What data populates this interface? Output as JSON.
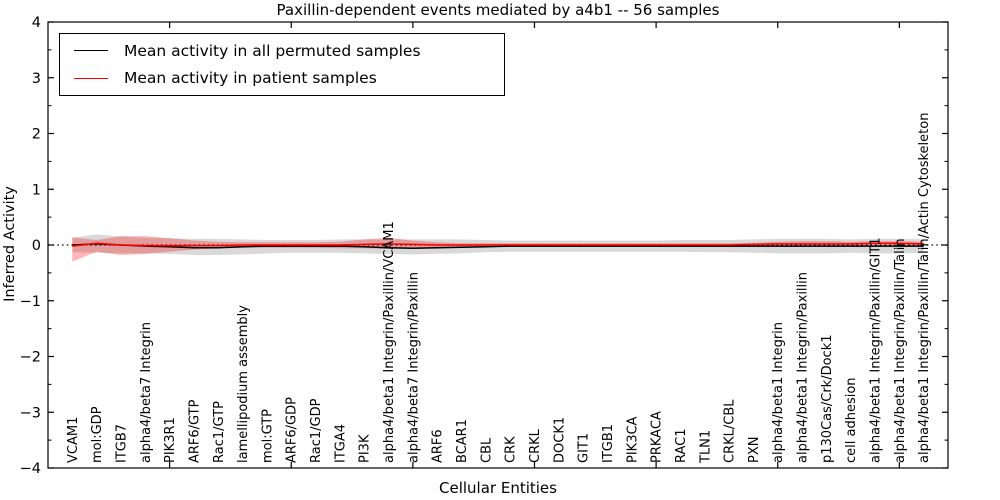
{
  "chart_data": {
    "type": "line",
    "title": "Paxillin-dependent events mediated by a4b1 -- 56 samples",
    "xlabel": "Cellular Entities",
    "ylabel": "Inferred Activity",
    "ylim": [
      -4,
      4
    ],
    "xlim": [
      0,
      37
    ],
    "yticks": [
      4,
      3,
      2,
      1,
      0,
      -1,
      -2,
      -3,
      -4
    ],
    "ytick_labels": [
      "4",
      "3",
      "2",
      "1",
      "0",
      "−1",
      "−2",
      "−3",
      "−4"
    ],
    "ytick_minor_step": 0.5,
    "xticks": [
      5,
      10,
      15,
      20,
      25,
      30,
      35
    ],
    "grid": false,
    "legend_position": "upper left",
    "zero_line": {
      "style": "dotted",
      "color": "#000000",
      "y": 0
    },
    "categories": [
      "VCAM1",
      "mol:GDP",
      "ITGB7",
      "alpha4/beta7 Integrin",
      "PIK3R1",
      "ARF6/GTP",
      "Rac1/GTP",
      "lamellipodium assembly",
      "mol:GTP",
      "ARF6/GDP",
      "Rac1/GDP",
      "ITGA4",
      "PI3K",
      "alpha4/beta1 Integrin/Paxillin/VCAM1",
      "alpha4/beta7 Integrin/Paxillin",
      "ARF6",
      "BCAR1",
      "CBL",
      "CRK",
      "CRKL",
      "DOCK1",
      "GIT1",
      "ITGB1",
      "PIK3CA",
      "PRKACA",
      "RAC1",
      "TLN1",
      "CRKL/CBL",
      "PXN",
      "alpha4/beta1 Integrin",
      "alpha4/beta1 Integrin/Paxillin",
      "p130Cas/Crk/Dock1",
      "cell adhesion",
      "alpha4/beta1 Integrin/Paxillin/GIT1",
      "alpha4/beta1 Integrin/Paxillin/Talin",
      "alpha4/beta1 Integrin/Paxillin/Talin/Actin Cytoskeleton"
    ],
    "series": [
      {
        "name": "Mean activity in all permuted samples",
        "color": "#000000",
        "band_color": "rgba(0,0,0,0.15)",
        "values": [
          0.0,
          0.02,
          0.0,
          -0.02,
          -0.03,
          -0.05,
          -0.05,
          -0.03,
          -0.02,
          -0.02,
          -0.02,
          -0.02,
          -0.03,
          -0.05,
          -0.06,
          -0.05,
          -0.04,
          -0.03,
          -0.02,
          -0.02,
          -0.02,
          -0.02,
          -0.02,
          -0.02,
          -0.02,
          -0.02,
          -0.02,
          -0.02,
          -0.02,
          -0.02,
          -0.02,
          -0.02,
          -0.02,
          -0.02,
          -0.02,
          -0.02
        ],
        "band_upper": [
          0.13,
          0.19,
          0.15,
          0.13,
          0.12,
          0.11,
          0.11,
          0.1,
          0.09,
          0.09,
          0.09,
          0.1,
          0.1,
          0.1,
          0.1,
          0.1,
          0.1,
          0.09,
          0.08,
          0.08,
          0.08,
          0.08,
          0.08,
          0.08,
          0.08,
          0.09,
          0.09,
          0.09,
          0.1,
          0.11,
          0.11,
          0.11,
          0.1,
          0.11,
          0.11,
          0.1
        ],
        "band_lower": [
          -0.13,
          -0.14,
          -0.15,
          -0.15,
          -0.16,
          -0.18,
          -0.18,
          -0.17,
          -0.15,
          -0.14,
          -0.14,
          -0.14,
          -0.15,
          -0.16,
          -0.17,
          -0.16,
          -0.15,
          -0.13,
          -0.12,
          -0.12,
          -0.12,
          -0.12,
          -0.12,
          -0.12,
          -0.12,
          -0.12,
          -0.13,
          -0.13,
          -0.14,
          -0.15,
          -0.15,
          -0.15,
          -0.14,
          -0.15,
          -0.15,
          -0.14
        ]
      },
      {
        "name": "Mean activity in patient samples",
        "color": "#ff0000",
        "band_color": "rgba(255,0,0,0.28)",
        "values": [
          -0.02,
          0.03,
          0.0,
          -0.01,
          -0.01,
          -0.01,
          -0.01,
          0.0,
          0.0,
          0.0,
          0.0,
          0.0,
          0.01,
          0.02,
          0.01,
          0.0,
          0.0,
          0.0,
          0.0,
          0.0,
          0.0,
          0.0,
          0.0,
          0.0,
          0.0,
          0.0,
          0.0,
          0.0,
          0.01,
          0.02,
          0.02,
          0.02,
          0.02,
          0.03,
          0.03,
          0.02
        ],
        "band_upper": [
          0.14,
          0.09,
          0.16,
          0.16,
          0.12,
          0.08,
          0.06,
          0.05,
          0.05,
          0.05,
          0.05,
          0.06,
          0.1,
          0.13,
          0.08,
          0.05,
          0.03,
          0.03,
          0.03,
          0.03,
          0.03,
          0.03,
          0.03,
          0.03,
          0.03,
          0.03,
          0.03,
          0.03,
          0.04,
          0.06,
          0.07,
          0.07,
          0.06,
          0.07,
          0.07,
          0.06
        ],
        "band_lower": [
          -0.3,
          -0.12,
          -0.18,
          -0.16,
          -0.12,
          -0.08,
          -0.06,
          -0.05,
          -0.05,
          -0.05,
          -0.05,
          -0.06,
          -0.06,
          -0.07,
          -0.05,
          -0.04,
          -0.03,
          -0.03,
          -0.03,
          -0.03,
          -0.03,
          -0.03,
          -0.03,
          -0.03,
          -0.03,
          -0.03,
          -0.03,
          -0.03,
          -0.02,
          -0.02,
          -0.02,
          -0.02,
          -0.02,
          -0.02,
          -0.02,
          -0.02
        ]
      }
    ]
  },
  "legend": {
    "entries": [
      {
        "label": "Mean activity in all permuted samples",
        "color": "#000000"
      },
      {
        "label": "Mean activity in patient samples",
        "color": "#ff0000"
      }
    ]
  }
}
